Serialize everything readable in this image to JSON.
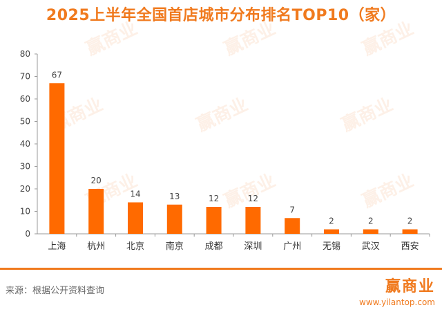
{
  "chart_data": {
    "type": "bar",
    "title": "2025上半年全国首店城市分布排名TOP10（家）",
    "categories": [
      "上海",
      "杭州",
      "北京",
      "南京",
      "成都",
      "深圳",
      "广州",
      "无锡",
      "武汉",
      "西安"
    ],
    "values": [
      67,
      20,
      14,
      13,
      12,
      12,
      7,
      2,
      2,
      2
    ],
    "ylim": [
      0,
      80
    ],
    "yticks": [
      0,
      10,
      20,
      30,
      40,
      50,
      60,
      70,
      80
    ],
    "xlabel": "",
    "ylabel": "",
    "grid": false,
    "bar_color": "#ff6a00",
    "data_labels": true
  },
  "footer": {
    "source": "来源：根据公开资料查询",
    "logo_text": "赢商业",
    "url": "www.yilantop.com"
  },
  "watermark_text": "赢商业",
  "colors": {
    "accent": "#f07a1e"
  }
}
